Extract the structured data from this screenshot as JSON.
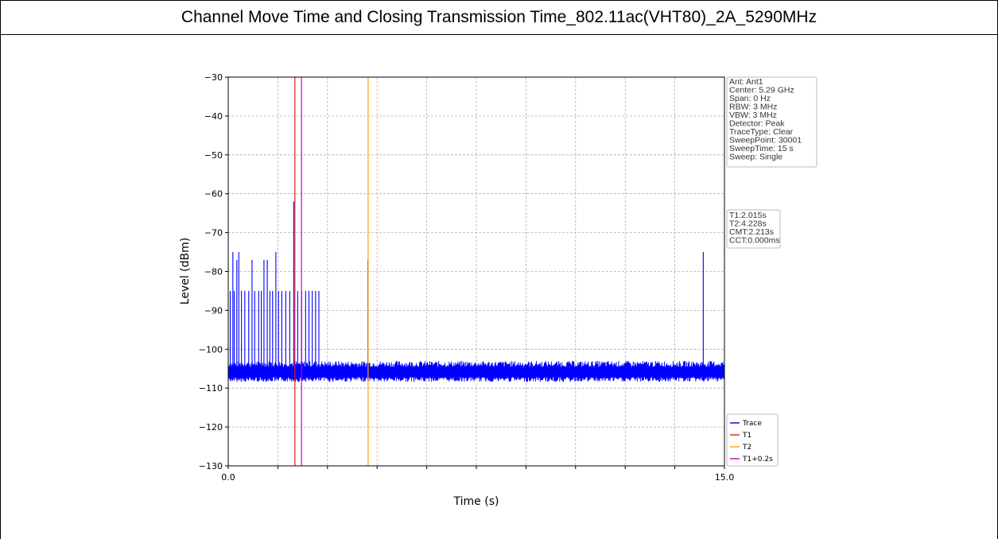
{
  "page": {
    "title": "Channel Move Time and Closing Transmission Time_802.11ac(VHT80)_2A_5290MHz"
  },
  "chart_data": {
    "type": "line",
    "title": "",
    "xlabel": "Time (s)",
    "ylabel": "Level (dBm)",
    "xlim": [
      0,
      15
    ],
    "ylim": [
      -130,
      -30
    ],
    "x_tick_labels": [
      "0.0",
      "15.0"
    ],
    "y_ticks": [
      -30,
      -40,
      -50,
      -60,
      -70,
      -80,
      -90,
      -100,
      -110,
      -120,
      -130
    ],
    "y_tick_labels": [
      "−30",
      "−40",
      "−50",
      "−60",
      "−70",
      "−80",
      "−90",
      "−100",
      "−110",
      "−120",
      "−130"
    ],
    "grid": true,
    "noise_floor_dbm": -106,
    "series": [
      {
        "name": "Trace",
        "color": "#0000ff",
        "bursts": [
          {
            "t": 0.06,
            "level": -85
          },
          {
            "t": 0.14,
            "level": -75
          },
          {
            "t": 0.18,
            "level": -85
          },
          {
            "t": 0.26,
            "level": -77
          },
          {
            "t": 0.32,
            "level": -75
          },
          {
            "t": 0.4,
            "level": -85
          },
          {
            "t": 0.5,
            "level": -85
          },
          {
            "t": 0.62,
            "level": -85
          },
          {
            "t": 0.72,
            "level": -77
          },
          {
            "t": 0.8,
            "level": -85
          },
          {
            "t": 0.92,
            "level": -85
          },
          {
            "t": 1.0,
            "level": -85
          },
          {
            "t": 1.08,
            "level": -77
          },
          {
            "t": 1.18,
            "level": -77
          },
          {
            "t": 1.26,
            "level": -85
          },
          {
            "t": 1.34,
            "level": -85
          },
          {
            "t": 1.44,
            "level": -75
          },
          {
            "t": 1.52,
            "level": -85
          },
          {
            "t": 1.62,
            "level": -85
          },
          {
            "t": 1.74,
            "level": -85
          },
          {
            "t": 1.86,
            "level": -85
          },
          {
            "t": 1.98,
            "level": -62
          },
          {
            "t": 2.1,
            "level": -85
          },
          {
            "t": 2.22,
            "level": -85
          },
          {
            "t": 2.34,
            "level": -85
          },
          {
            "t": 2.44,
            "level": -85
          },
          {
            "t": 2.54,
            "level": -85
          },
          {
            "t": 2.64,
            "level": -85
          },
          {
            "t": 2.74,
            "level": -85
          },
          {
            "t": 4.22,
            "level": -77
          },
          {
            "t": 14.36,
            "level": -75
          }
        ]
      },
      {
        "name": "T1",
        "color": "#e41a1c",
        "x": 2.015
      },
      {
        "name": "T2",
        "color": "#ffa500",
        "x": 4.228
      },
      {
        "name": "T1+0.2s",
        "color": "#cc00cc",
        "x": 2.215
      }
    ],
    "legend_position": "lower-right",
    "info_box": [
      "Ant: Ant1",
      "Center: 5.29 GHz",
      "Span: 0 Hz",
      "RBW: 3 MHz",
      "VBW: 3 MHz",
      "Detector: Peak",
      "TraceType: Clear",
      "SweepPoint: 30001",
      "SweepTime: 15 s",
      "Sweep: Single"
    ],
    "results_box": [
      "T1:2.015s",
      "T2:4.228s",
      "CMT:2.213s",
      "CCT:0.000ms"
    ]
  }
}
